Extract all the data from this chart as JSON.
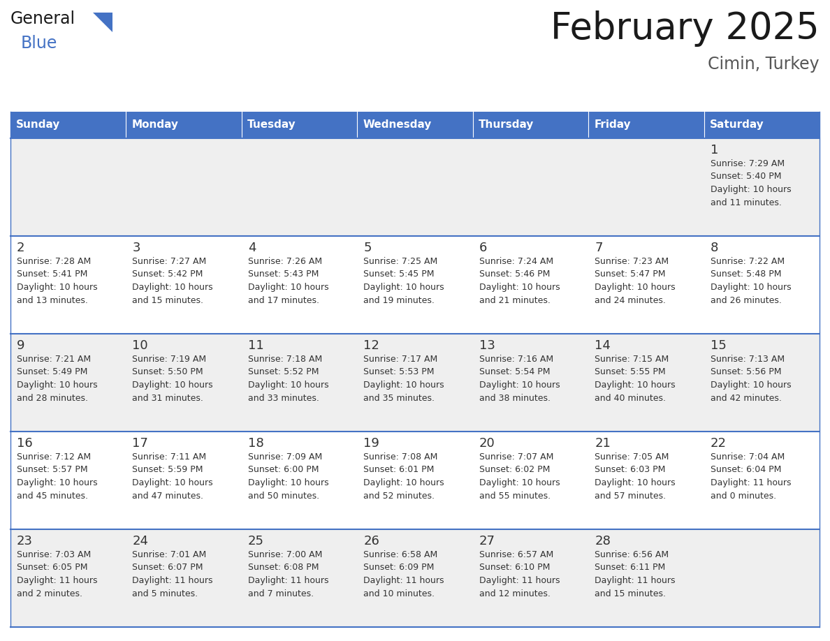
{
  "title": "February 2025",
  "subtitle": "Cimin, Turkey",
  "header_bg": "#4472C4",
  "header_text_color": "#FFFFFF",
  "header_days": [
    "Sunday",
    "Monday",
    "Tuesday",
    "Wednesday",
    "Thursday",
    "Friday",
    "Saturday"
  ],
  "row_bg_odd": "#EFEFEF",
  "row_bg_even": "#FFFFFF",
  "cell_text_color": "#333333",
  "day_number_color": "#333333",
  "grid_line_color": "#4472C4",
  "title_color": "#1a1a1a",
  "subtitle_color": "#555555",
  "logo_general_color": "#1a1a1a",
  "logo_blue_color": "#4472C4",
  "calendar_data": [
    [
      null,
      null,
      null,
      null,
      null,
      null,
      {
        "day": 1,
        "sunrise": "7:29 AM",
        "sunset": "5:40 PM",
        "daylight": "10 hours\nand 11 minutes."
      }
    ],
    [
      {
        "day": 2,
        "sunrise": "7:28 AM",
        "sunset": "5:41 PM",
        "daylight": "10 hours\nand 13 minutes."
      },
      {
        "day": 3,
        "sunrise": "7:27 AM",
        "sunset": "5:42 PM",
        "daylight": "10 hours\nand 15 minutes."
      },
      {
        "day": 4,
        "sunrise": "7:26 AM",
        "sunset": "5:43 PM",
        "daylight": "10 hours\nand 17 minutes."
      },
      {
        "day": 5,
        "sunrise": "7:25 AM",
        "sunset": "5:45 PM",
        "daylight": "10 hours\nand 19 minutes."
      },
      {
        "day": 6,
        "sunrise": "7:24 AM",
        "sunset": "5:46 PM",
        "daylight": "10 hours\nand 21 minutes."
      },
      {
        "day": 7,
        "sunrise": "7:23 AM",
        "sunset": "5:47 PM",
        "daylight": "10 hours\nand 24 minutes."
      },
      {
        "day": 8,
        "sunrise": "7:22 AM",
        "sunset": "5:48 PM",
        "daylight": "10 hours\nand 26 minutes."
      }
    ],
    [
      {
        "day": 9,
        "sunrise": "7:21 AM",
        "sunset": "5:49 PM",
        "daylight": "10 hours\nand 28 minutes."
      },
      {
        "day": 10,
        "sunrise": "7:19 AM",
        "sunset": "5:50 PM",
        "daylight": "10 hours\nand 31 minutes."
      },
      {
        "day": 11,
        "sunrise": "7:18 AM",
        "sunset": "5:52 PM",
        "daylight": "10 hours\nand 33 minutes."
      },
      {
        "day": 12,
        "sunrise": "7:17 AM",
        "sunset": "5:53 PM",
        "daylight": "10 hours\nand 35 minutes."
      },
      {
        "day": 13,
        "sunrise": "7:16 AM",
        "sunset": "5:54 PM",
        "daylight": "10 hours\nand 38 minutes."
      },
      {
        "day": 14,
        "sunrise": "7:15 AM",
        "sunset": "5:55 PM",
        "daylight": "10 hours\nand 40 minutes."
      },
      {
        "day": 15,
        "sunrise": "7:13 AM",
        "sunset": "5:56 PM",
        "daylight": "10 hours\nand 42 minutes."
      }
    ],
    [
      {
        "day": 16,
        "sunrise": "7:12 AM",
        "sunset": "5:57 PM",
        "daylight": "10 hours\nand 45 minutes."
      },
      {
        "day": 17,
        "sunrise": "7:11 AM",
        "sunset": "5:59 PM",
        "daylight": "10 hours\nand 47 minutes."
      },
      {
        "day": 18,
        "sunrise": "7:09 AM",
        "sunset": "6:00 PM",
        "daylight": "10 hours\nand 50 minutes."
      },
      {
        "day": 19,
        "sunrise": "7:08 AM",
        "sunset": "6:01 PM",
        "daylight": "10 hours\nand 52 minutes."
      },
      {
        "day": 20,
        "sunrise": "7:07 AM",
        "sunset": "6:02 PM",
        "daylight": "10 hours\nand 55 minutes."
      },
      {
        "day": 21,
        "sunrise": "7:05 AM",
        "sunset": "6:03 PM",
        "daylight": "10 hours\nand 57 minutes."
      },
      {
        "day": 22,
        "sunrise": "7:04 AM",
        "sunset": "6:04 PM",
        "daylight": "11 hours\nand 0 minutes."
      }
    ],
    [
      {
        "day": 23,
        "sunrise": "7:03 AM",
        "sunset": "6:05 PM",
        "daylight": "11 hours\nand 2 minutes."
      },
      {
        "day": 24,
        "sunrise": "7:01 AM",
        "sunset": "6:07 PM",
        "daylight": "11 hours\nand 5 minutes."
      },
      {
        "day": 25,
        "sunrise": "7:00 AM",
        "sunset": "6:08 PM",
        "daylight": "11 hours\nand 7 minutes."
      },
      {
        "day": 26,
        "sunrise": "6:58 AM",
        "sunset": "6:09 PM",
        "daylight": "11 hours\nand 10 minutes."
      },
      {
        "day": 27,
        "sunrise": "6:57 AM",
        "sunset": "6:10 PM",
        "daylight": "11 hours\nand 12 minutes."
      },
      {
        "day": 28,
        "sunrise": "6:56 AM",
        "sunset": "6:11 PM",
        "daylight": "11 hours\nand 15 minutes."
      },
      null
    ]
  ]
}
